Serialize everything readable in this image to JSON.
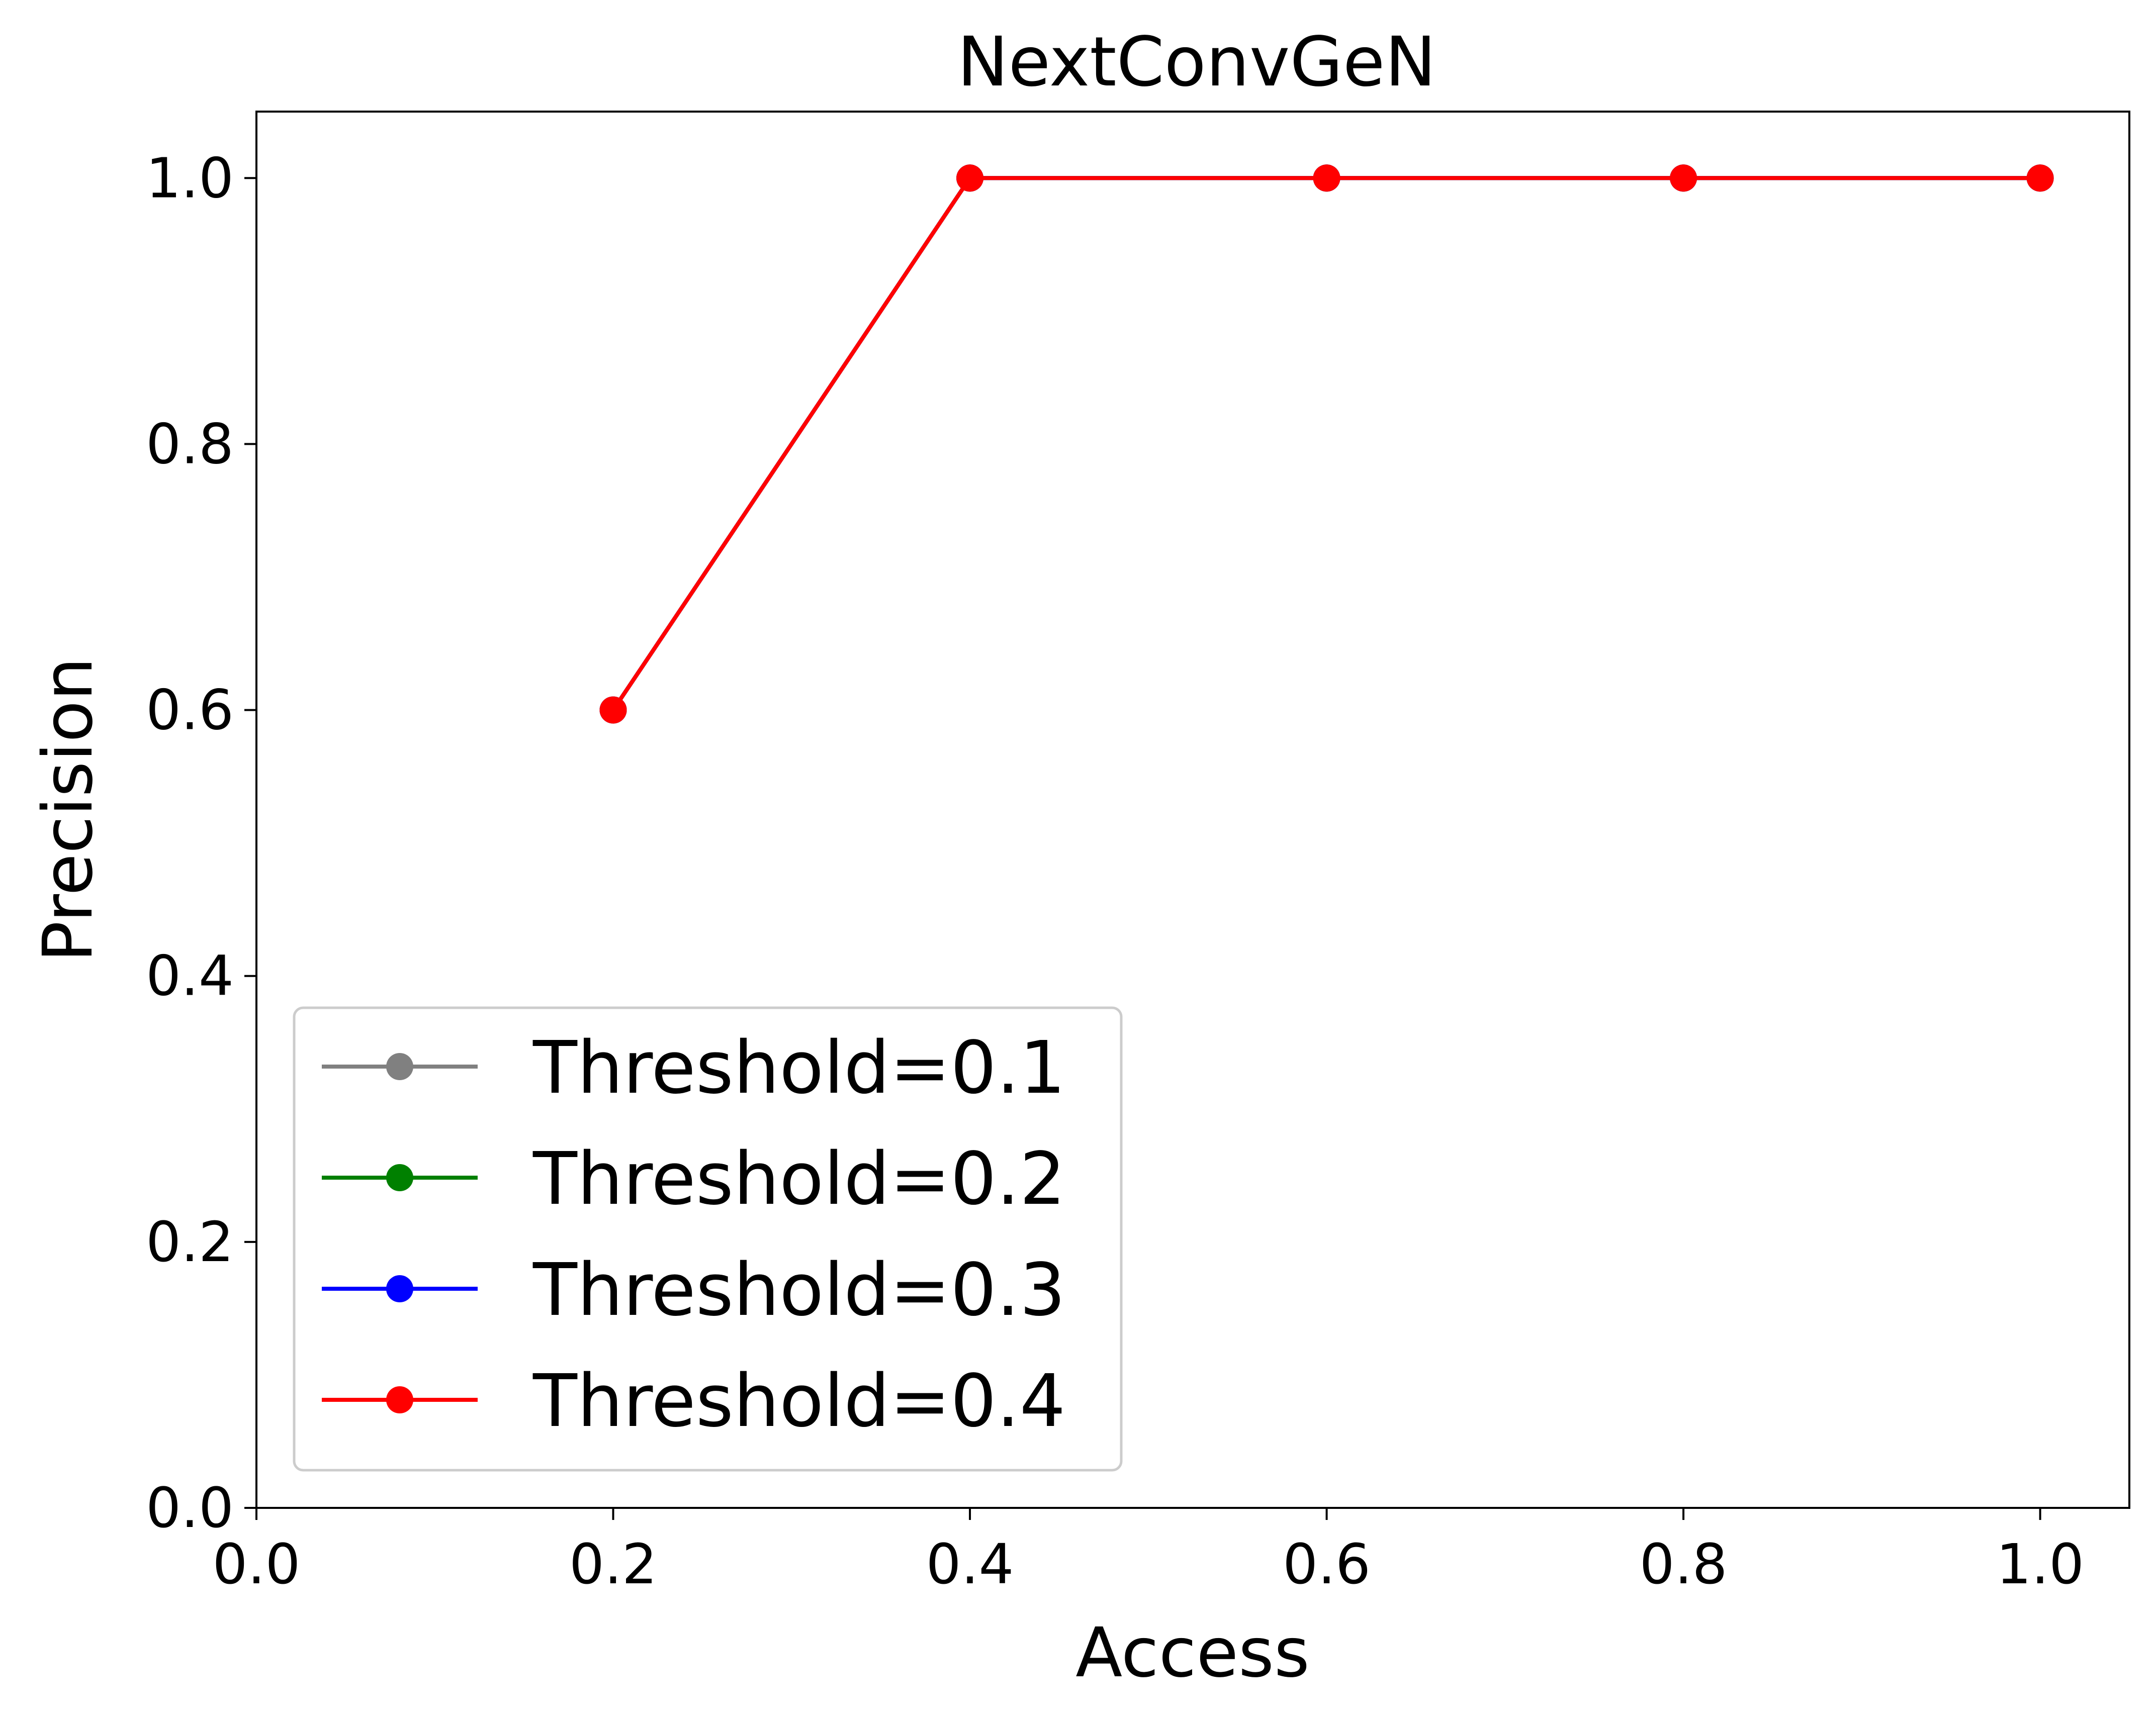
{
  "chart_data": {
    "type": "line",
    "title": "NextConvGeN",
    "xlabel": "Access",
    "ylabel": "Precision",
    "xlim": [
      0.0,
      1.05
    ],
    "ylim": [
      0.0,
      1.05
    ],
    "xticks": [
      0.0,
      0.2,
      0.4,
      0.6,
      0.8,
      1.0
    ],
    "yticks": [
      0.0,
      0.2,
      0.4,
      0.6,
      0.8,
      1.0
    ],
    "xtick_labels": [
      "0.0",
      "0.2",
      "0.4",
      "0.6",
      "0.8",
      "1.0"
    ],
    "ytick_labels": [
      "0.0",
      "0.2",
      "0.4",
      "0.6",
      "0.8",
      "1.0"
    ],
    "grid": false,
    "legend_position": "lower-left",
    "marker": "circle",
    "series": [
      {
        "name": "Threshold=0.1",
        "color": "#808080",
        "x": [
          0.2,
          0.4,
          0.6,
          0.8,
          1.0
        ],
        "y": [
          0.6,
          1.0,
          1.0,
          1.0,
          1.0
        ]
      },
      {
        "name": "Threshold=0.2",
        "color": "#008000",
        "x": [
          0.2,
          0.4,
          0.6,
          0.8,
          1.0
        ],
        "y": [
          0.6,
          1.0,
          1.0,
          1.0,
          1.0
        ]
      },
      {
        "name": "Threshold=0.3",
        "color": "#0000ff",
        "x": [
          0.2,
          0.4,
          0.6,
          0.8,
          1.0
        ],
        "y": [
          0.6,
          1.0,
          1.0,
          1.0,
          1.0
        ]
      },
      {
        "name": "Threshold=0.4",
        "color": "#ff0000",
        "x": [
          0.2,
          0.4,
          0.6,
          0.8,
          1.0
        ],
        "y": [
          0.6,
          1.0,
          1.0,
          1.0,
          1.0
        ]
      }
    ]
  }
}
